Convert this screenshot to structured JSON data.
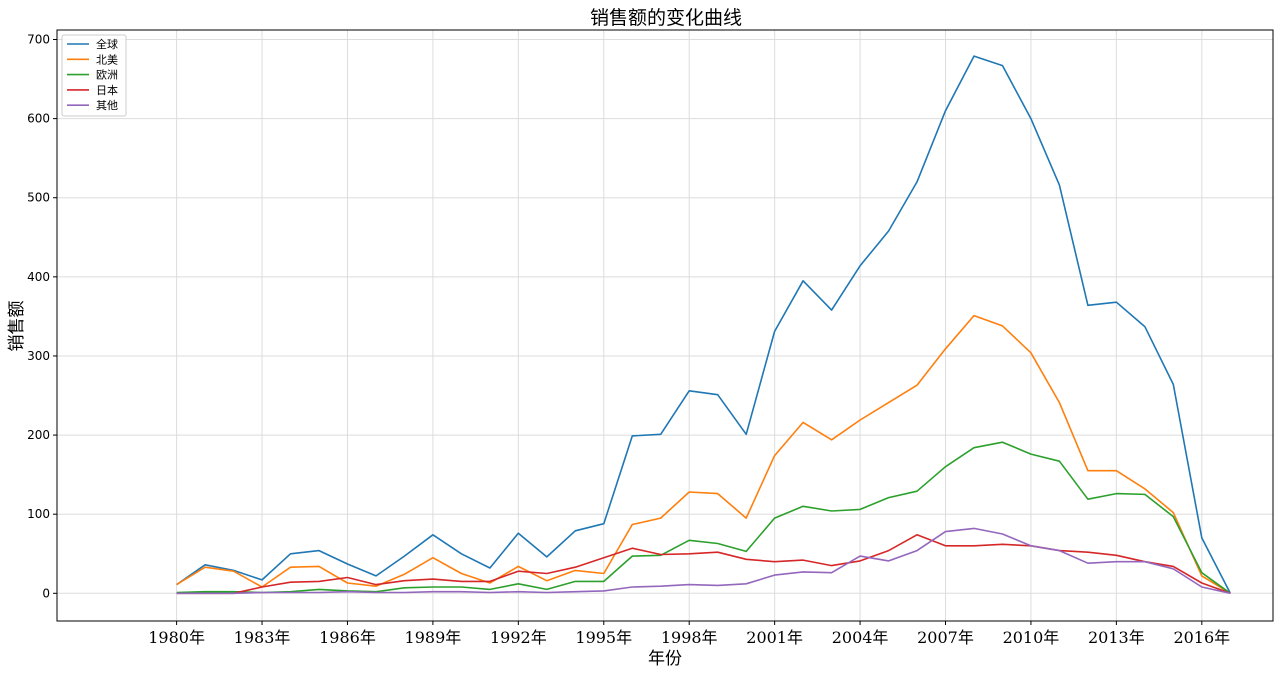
{
  "chart_data": {
    "type": "line",
    "title": "销售额的变化曲线",
    "xlabel": "年份",
    "ylabel": "销售额",
    "xlim": [
      1975.8,
      2018.5
    ],
    "ylim": [
      -35,
      712
    ],
    "grid": true,
    "legend_position": "top-left",
    "x": [
      1980,
      1981,
      1982,
      1983,
      1984,
      1985,
      1986,
      1987,
      1988,
      1989,
      1990,
      1991,
      1992,
      1993,
      1994,
      1995,
      1996,
      1997,
      1998,
      1999,
      2000,
      2001,
      2002,
      2003,
      2004,
      2005,
      2006,
      2007,
      2008,
      2009,
      2010,
      2011,
      2012,
      2013,
      2014,
      2015,
      2016,
      2017
    ],
    "x_ticks": [
      1980,
      1983,
      1986,
      1989,
      1992,
      1995,
      1998,
      2001,
      2004,
      2007,
      2010,
      2013,
      2016
    ],
    "x_tick_labels": [
      "1980年",
      "1983年",
      "1986年",
      "1989年",
      "1992年",
      "1995年",
      "1998年",
      "2001年",
      "2004年",
      "2007年",
      "2010年",
      "2013年",
      "2016年"
    ],
    "y_ticks": [
      0,
      100,
      200,
      300,
      400,
      500,
      600,
      700
    ],
    "y_tick_labels": [
      "0",
      "100",
      "200",
      "300",
      "400",
      "500",
      "600",
      "700"
    ],
    "series": [
      {
        "name": "全球",
        "color": "#1f77b4",
        "values": [
          11,
          36,
          29,
          17,
          50,
          54,
          37,
          22,
          47,
          74,
          50,
          32,
          76,
          46,
          79,
          88,
          199,
          201,
          256,
          251,
          201,
          331,
          395,
          358,
          414,
          458,
          520,
          610,
          679,
          667,
          600,
          516,
          364,
          368,
          337,
          264,
          70,
          0
        ]
      },
      {
        "name": "北美",
        "color": "#ff7f0e",
        "values": [
          11,
          33,
          28,
          8,
          33,
          34,
          13,
          9,
          24,
          45,
          25,
          13,
          34,
          16,
          29,
          25,
          87,
          95,
          128,
          126,
          95,
          174,
          216,
          194,
          219,
          241,
          263,
          309,
          351,
          338,
          304,
          241,
          155,
          155,
          132,
          102,
          22,
          0
        ]
      },
      {
        "name": "欧洲",
        "color": "#2ca02c",
        "values": [
          1,
          2,
          2,
          1,
          2,
          5,
          3,
          2,
          7,
          8,
          8,
          5,
          12,
          5,
          15,
          15,
          47,
          48,
          67,
          63,
          53,
          95,
          110,
          104,
          106,
          121,
          129,
          160,
          184,
          191,
          176,
          167,
          119,
          126,
          125,
          97,
          26,
          0
        ]
      },
      {
        "name": "日本",
        "color": "#d62728",
        "values": [
          0,
          0,
          0,
          8,
          14,
          15,
          20,
          11,
          16,
          18,
          15,
          15,
          28,
          25,
          33,
          45,
          57,
          49,
          50,
          52,
          43,
          40,
          42,
          35,
          41,
          54,
          74,
          60,
          60,
          62,
          60,
          54,
          52,
          48,
          40,
          34,
          13,
          0
        ]
      },
      {
        "name": "其他",
        "color": "#9467bd",
        "values": [
          0,
          0,
          0,
          1,
          1,
          1,
          2,
          1,
          1,
          2,
          2,
          1,
          2,
          1,
          2,
          3,
          8,
          9,
          11,
          10,
          12,
          23,
          27,
          26,
          47,
          41,
          54,
          78,
          82,
          75,
          60,
          54,
          38,
          40,
          40,
          31,
          8,
          0
        ]
      }
    ]
  }
}
